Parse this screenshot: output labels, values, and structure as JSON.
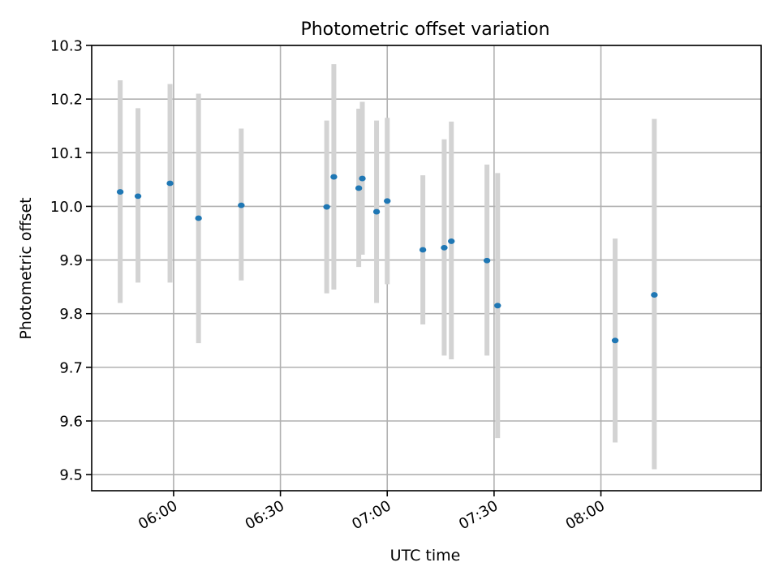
{
  "chart_data": {
    "type": "scatter",
    "title": "Photometric offset variation",
    "xlabel": "UTC time",
    "ylabel": "Photometric offset",
    "xlim": [
      "05:37",
      "08:45"
    ],
    "ylim": [
      9.47,
      10.3
    ],
    "x_ticks": [
      "06:00",
      "06:30",
      "07:00",
      "07:30",
      "08:00"
    ],
    "y_ticks": [
      9.5,
      9.6,
      9.7,
      9.8,
      9.9,
      10.0,
      10.1,
      10.2,
      10.3
    ],
    "y_tick_labels": [
      "9.5",
      "9.6",
      "9.7",
      "9.8",
      "9.9",
      "10.0",
      "10.1",
      "10.2",
      "10.3"
    ],
    "grid": true,
    "series": [
      {
        "marker_color": "#1f77b4",
        "errorbar_color": "#d3d3d3",
        "points": [
          {
            "x": "05:45",
            "y": 10.027,
            "low": 9.82,
            "high": 10.235
          },
          {
            "x": "05:50",
            "y": 10.019,
            "low": 9.858,
            "high": 10.183
          },
          {
            "x": "05:59",
            "y": 10.043,
            "low": 9.858,
            "high": 10.228
          },
          {
            "x": "06:07",
            "y": 9.978,
            "low": 9.745,
            "high": 10.21
          },
          {
            "x": "06:19",
            "y": 10.002,
            "low": 9.862,
            "high": 10.145
          },
          {
            "x": "06:43",
            "y": 9.999,
            "low": 9.838,
            "high": 10.16
          },
          {
            "x": "06:45",
            "y": 10.055,
            "low": 9.845,
            "high": 10.265
          },
          {
            "x": "06:52",
            "y": 10.034,
            "low": 9.887,
            "high": 10.182
          },
          {
            "x": "06:53",
            "y": 10.052,
            "low": 9.91,
            "high": 10.195
          },
          {
            "x": "06:57",
            "y": 9.99,
            "low": 9.82,
            "high": 10.16
          },
          {
            "x": "07:00",
            "y": 10.01,
            "low": 9.855,
            "high": 10.165
          },
          {
            "x": "07:10",
            "y": 9.919,
            "low": 9.78,
            "high": 10.058
          },
          {
            "x": "07:16",
            "y": 9.923,
            "low": 9.722,
            "high": 10.125
          },
          {
            "x": "07:18",
            "y": 9.935,
            "low": 9.715,
            "high": 10.158
          },
          {
            "x": "07:28",
            "y": 9.899,
            "low": 9.722,
            "high": 10.078
          },
          {
            "x": "07:31",
            "y": 9.815,
            "low": 9.568,
            "high": 10.062
          },
          {
            "x": "08:04",
            "y": 9.75,
            "low": 9.56,
            "high": 9.94
          },
          {
            "x": "08:15",
            "y": 9.835,
            "low": 9.51,
            "high": 10.163
          }
        ]
      }
    ]
  }
}
